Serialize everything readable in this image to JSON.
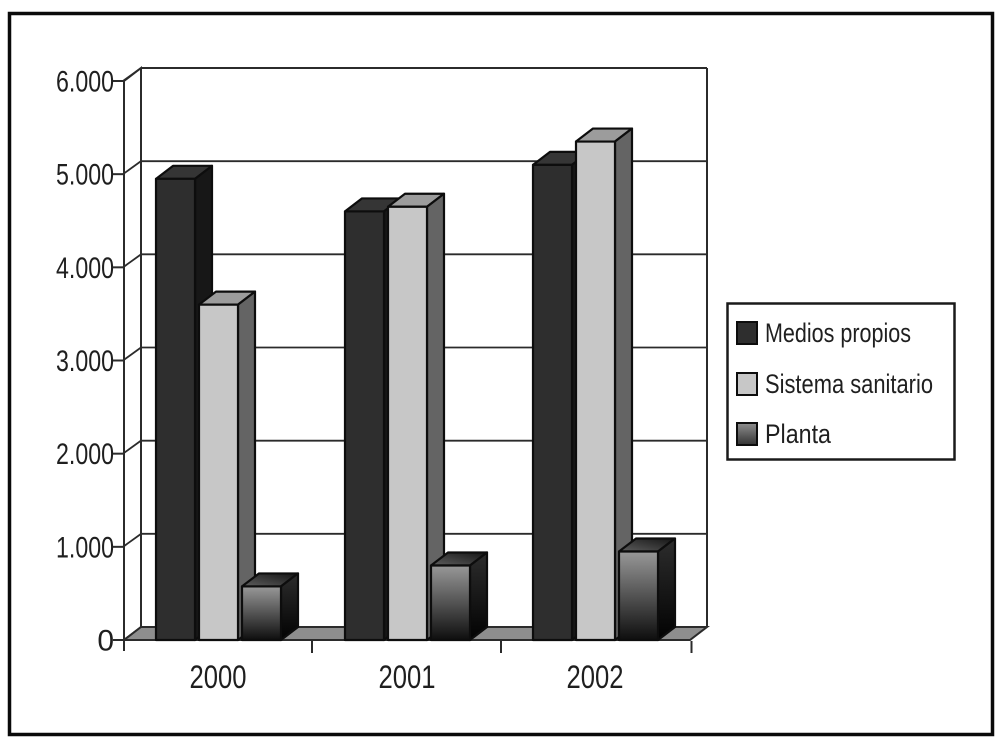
{
  "figure": {
    "background": "#ffffff",
    "frame_color": "#0a0a0a"
  },
  "chart_data": {
    "type": "bar",
    "projection": "3d-oblique",
    "title": "",
    "xlabel": "",
    "ylabel": "",
    "categories": [
      "2000",
      "2001",
      "2002"
    ],
    "series": [
      {
        "name": "Medios propios",
        "values": [
          4950,
          4600,
          5100
        ],
        "front": "#2e2e2e",
        "top": "#353535",
        "side": "#171717",
        "legend_swatch": "#2e2e2e"
      },
      {
        "name": "Sistema sanitario",
        "values": [
          3600,
          4650,
          5350
        ],
        "front": "#c7c7c7",
        "top": "#9c9c9c",
        "side": "#646464",
        "legend_swatch": "#c7c7c7"
      },
      {
        "name": "Planta",
        "values": [
          575,
          800,
          950
        ],
        "front": [
          "#989898",
          "#0e0e0e"
        ],
        "top": [
          "#5e5e5e",
          "#141414"
        ],
        "side": [
          "#2d2d2d",
          "#020202"
        ],
        "legend_swatch": [
          "#8f8f8f",
          "#333333"
        ]
      }
    ],
    "ylim": [
      0,
      6000
    ],
    "ytick_step": 1000,
    "ytick_labels": [
      "0",
      "1.000",
      "2.000",
      "3.000",
      "4.000",
      "5.000",
      "6.000"
    ],
    "grid": true,
    "legend_position": "right-middle",
    "colors": {
      "floor": "#8e8e8e",
      "wall_fill": "#ffffff",
      "line": "#2b2b2b",
      "bar_outline": "#0d0d0d",
      "text": "#1f1f1f",
      "legend_border": "#1a1a1a",
      "legend_fill": "#ffffff"
    }
  }
}
